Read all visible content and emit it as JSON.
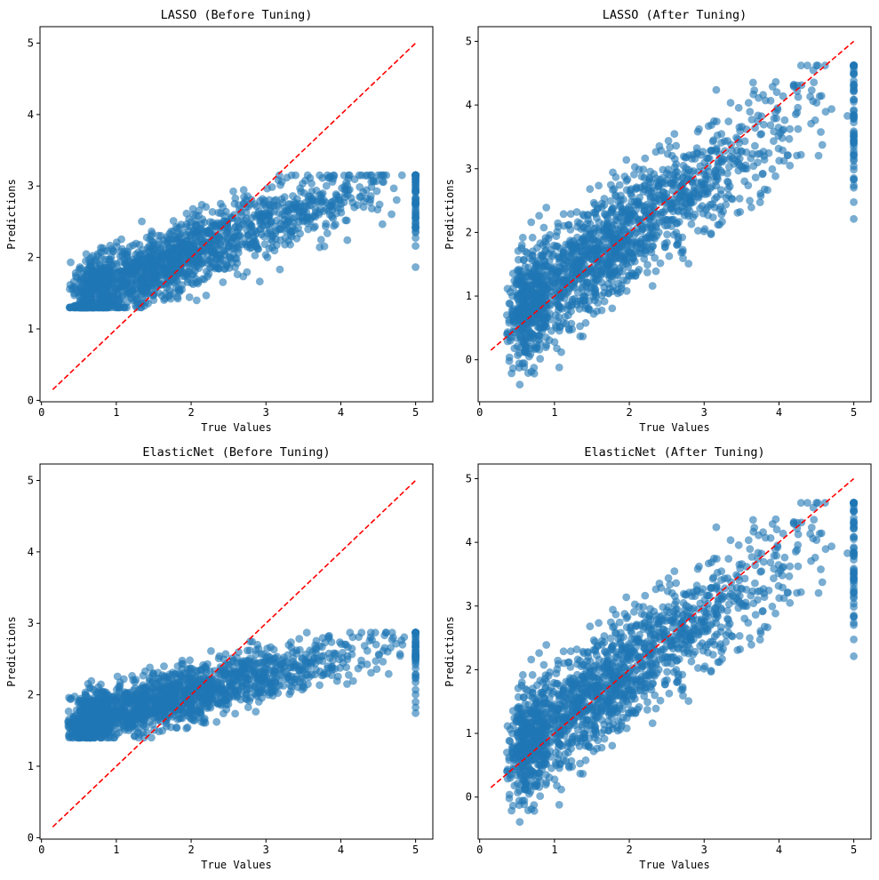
{
  "chart_data": [
    {
      "type": "scatter",
      "title": "LASSO (Before Tuning)",
      "xlabel": "True Values",
      "ylabel": "Predictions",
      "xlim": [
        -0.02,
        5.23
      ],
      "ylim": [
        -0.02,
        5.23
      ],
      "xticks": [
        "0",
        "1",
        "2",
        "3",
        "4",
        "5"
      ],
      "yticks": [
        "0",
        "1",
        "2",
        "3",
        "4",
        "5"
      ],
      "grid": false,
      "point_color": "#1f77b4",
      "ref_line": {
        "x": [
          0.15,
          5.0
        ],
        "y": [
          0.15,
          5.0
        ],
        "color": "#ff0000",
        "style": "dashed"
      },
      "points_model": {
        "intercept": 1.2,
        "slope": 0.42,
        "spread": 0.25,
        "cap": [
          1.3,
          3.15
        ],
        "count": 1700,
        "seed": 11
      }
    },
    {
      "type": "scatter",
      "title": "LASSO (After Tuning)",
      "xlabel": "True Values",
      "ylabel": "Predictions",
      "xlim": [
        -0.02,
        5.23
      ],
      "ylim": [
        -0.66,
        5.23
      ],
      "xticks": [
        "0",
        "1",
        "2",
        "3",
        "4",
        "5"
      ],
      "yticks": [
        "0",
        "1",
        "2",
        "3",
        "4",
        "5"
      ],
      "grid": false,
      "point_color": "#1f77b4",
      "ref_line": {
        "x": [
          0.15,
          5.0
        ],
        "y": [
          0.15,
          5.0
        ],
        "color": "#ff0000",
        "style": "dashed"
      },
      "points_model": {
        "intercept": 0.35,
        "slope": 0.82,
        "spread": 0.45,
        "cap": [
          -0.4,
          4.62
        ],
        "count": 1700,
        "seed": 23
      }
    },
    {
      "type": "scatter",
      "title": "ElasticNet (Before Tuning)",
      "xlabel": "True Values",
      "ylabel": "Predictions",
      "xlim": [
        -0.02,
        5.23
      ],
      "ylim": [
        -0.02,
        5.23
      ],
      "xticks": [
        "0",
        "1",
        "2",
        "3",
        "4",
        "5"
      ],
      "yticks": [
        "0",
        "1",
        "2",
        "3",
        "4",
        "5"
      ],
      "grid": false,
      "point_color": "#1f77b4",
      "ref_line": {
        "x": [
          0.15,
          5.0
        ],
        "y": [
          0.15,
          5.0
        ],
        "color": "#ff0000",
        "style": "dashed"
      },
      "points_model": {
        "intercept": 1.5,
        "slope": 0.26,
        "spread": 0.2,
        "cap": [
          1.4,
          2.87
        ],
        "count": 1700,
        "seed": 37
      }
    },
    {
      "type": "scatter",
      "title": "ElasticNet (After Tuning)",
      "xlabel": "True Values",
      "ylabel": "Predictions",
      "xlim": [
        -0.02,
        5.23
      ],
      "ylim": [
        -0.66,
        5.23
      ],
      "xticks": [
        "0",
        "1",
        "2",
        "3",
        "4",
        "5"
      ],
      "yticks": [
        "0",
        "1",
        "2",
        "3",
        "4",
        "5"
      ],
      "grid": false,
      "point_color": "#1f77b4",
      "ref_line": {
        "x": [
          0.15,
          5.0
        ],
        "y": [
          0.15,
          5.0
        ],
        "color": "#ff0000",
        "style": "dashed"
      },
      "points_model": {
        "intercept": 0.35,
        "slope": 0.82,
        "spread": 0.45,
        "cap": [
          -0.4,
          4.62
        ],
        "count": 1700,
        "seed": 23
      }
    }
  ]
}
